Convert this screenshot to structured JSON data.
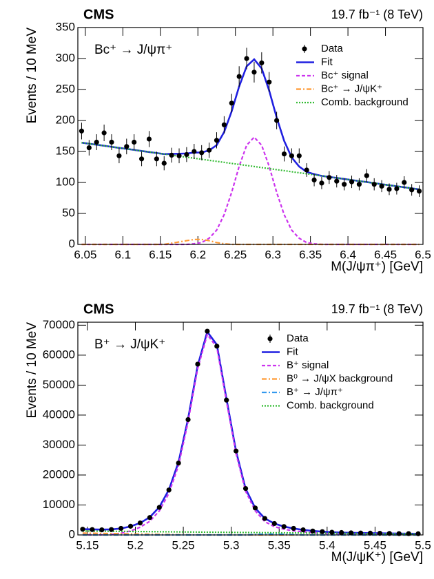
{
  "chart_data": [
    {
      "type": "scatter",
      "experiment": "CMS",
      "lumi": "19.7 fb⁻¹ (8 TeV)",
      "label": "Bc⁺ → J/ψπ⁺",
      "x_label": "M(J/ψπ⁺) [GeV]",
      "y_label": "Events / 10 MeV",
      "xlim": [
        6.04,
        6.5
      ],
      "ylim": [
        0,
        350
      ],
      "xticks": [
        6.05,
        6.1,
        6.15,
        6.2,
        6.25,
        6.3,
        6.35,
        6.4,
        6.45,
        6.5
      ],
      "yticks": [
        0,
        50,
        100,
        150,
        200,
        250,
        300,
        350
      ],
      "legend": "upper right",
      "x": [
        6.045,
        6.055,
        6.065,
        6.075,
        6.085,
        6.095,
        6.105,
        6.115,
        6.125,
        6.135,
        6.145,
        6.155,
        6.165,
        6.175,
        6.185,
        6.195,
        6.205,
        6.215,
        6.225,
        6.235,
        6.245,
        6.255,
        6.265,
        6.275,
        6.285,
        6.295,
        6.305,
        6.315,
        6.325,
        6.335,
        6.345,
        6.355,
        6.365,
        6.375,
        6.385,
        6.395,
        6.405,
        6.415,
        6.425,
        6.435,
        6.445,
        6.455,
        6.465,
        6.475,
        6.485,
        6.495
      ],
      "series": [
        {
          "name": "Data",
          "style": "points",
          "color": "#000000",
          "values": [
            183,
            156,
            165,
            180,
            165,
            143,
            158,
            165,
            138,
            170,
            138,
            131,
            144,
            143,
            145,
            150,
            148,
            152,
            168,
            193,
            228,
            271,
            300,
            278,
            293,
            262,
            200,
            146,
            143,
            143,
            120,
            104,
            99,
            108,
            102,
            97,
            101,
            97,
            111,
            97,
            94,
            89,
            90,
            100,
            88,
            86
          ],
          "errors": [
            13.5,
            12.5,
            12.8,
            13.4,
            12.8,
            12,
            12.6,
            12.8,
            11.7,
            13,
            11.7,
            11.4,
            12,
            12,
            12,
            12.2,
            12.2,
            12.3,
            13,
            13.9,
            15.1,
            16.5,
            17.3,
            16.7,
            17.1,
            16.2,
            14.1,
            12.1,
            12,
            12,
            11,
            10.2,
            9.9,
            10.4,
            10.1,
            9.8,
            10,
            9.8,
            10.5,
            9.8,
            9.7,
            9.4,
            9.5,
            10,
            9.4,
            9.3
          ]
        },
        {
          "name": "Fit",
          "style": "solid",
          "color": "#1f1fe0",
          "values": [
            164.2,
            162.5,
            160.9,
            159.2,
            157.5,
            155.8,
            154.2,
            152.5,
            150.8,
            149.1,
            147.5,
            145.8,
            146.1,
            146.4,
            146.8,
            148.1,
            148.4,
            151.7,
            160.1,
            181.4,
            214.7,
            255,
            287.4,
            298.7,
            284,
            248.3,
            204.7,
            167,
            140.3,
            125.6,
            117,
            113.3,
            110.6,
            108.9,
            107.3,
            105.6,
            103.9,
            102.2,
            100.6,
            98.9,
            97.2,
            95.5,
            93.9,
            92.2,
            90.5,
            88.8
          ]
        },
        {
          "name": "Bc⁺ signal",
          "style": "dashed",
          "color": "#cc33ee",
          "values": [
            0,
            0,
            0,
            0,
            0,
            0,
            0,
            0,
            0,
            0,
            0,
            0,
            0,
            0,
            0,
            1,
            3,
            10,
            23,
            48,
            84,
            126,
            160,
            173,
            160,
            126,
            84,
            48,
            23,
            10,
            3,
            1,
            0,
            0,
            0,
            0,
            0,
            0,
            0,
            0,
            0,
            0,
            0,
            0,
            0,
            0
          ]
        },
        {
          "name": "Bc⁺ → J/ψK⁺",
          "style": "dashdot",
          "color": "#ff9933",
          "values": [
            0,
            0,
            0,
            0,
            0,
            0,
            0,
            0,
            0,
            0,
            0,
            0,
            2,
            4,
            6,
            8,
            8,
            6,
            3,
            1,
            0,
            0,
            0,
            0,
            0,
            0,
            0,
            0,
            0,
            0,
            0,
            0,
            0,
            0,
            0,
            0,
            0,
            0,
            0,
            0,
            0,
            0,
            0,
            0,
            0,
            0
          ]
        },
        {
          "name": "Comb. background",
          "style": "dotted",
          "color": "#33bb33",
          "values": [
            164.2,
            162.5,
            160.9,
            159.2,
            157.5,
            155.8,
            154.2,
            152.5,
            150.8,
            149.1,
            147.5,
            145.8,
            144.1,
            142.4,
            140.8,
            139.1,
            137.4,
            135.7,
            134.1,
            132.4,
            130.7,
            129,
            127.4,
            125.7,
            124,
            122.3,
            120.7,
            119,
            117.3,
            115.6,
            114,
            112.3,
            110.6,
            108.9,
            107.3,
            105.6,
            103.9,
            102.2,
            100.6,
            98.9,
            97.2,
            95.5,
            93.9,
            92.2,
            90.5,
            88.8
          ]
        }
      ]
    },
    {
      "type": "scatter",
      "experiment": "CMS",
      "lumi": "19.7 fb⁻¹ (8 TeV)",
      "label": "B⁺ → J/ψK⁺",
      "x_label": "M(J/ψK⁺) [GeV]",
      "y_label": "Events / 10 MeV",
      "xlim": [
        5.14,
        5.5
      ],
      "ylim": [
        0,
        71000
      ],
      "xticks": [
        5.15,
        5.2,
        5.25,
        5.3,
        5.35,
        5.4,
        5.45,
        5.5
      ],
      "yticks": [
        0,
        10000,
        20000,
        30000,
        40000,
        50000,
        60000,
        70000
      ],
      "legend": "upper right",
      "x": [
        5.145,
        5.155,
        5.165,
        5.175,
        5.185,
        5.195,
        5.205,
        5.215,
        5.225,
        5.235,
        5.245,
        5.255,
        5.265,
        5.275,
        5.285,
        5.295,
        5.305,
        5.315,
        5.325,
        5.335,
        5.345,
        5.355,
        5.365,
        5.375,
        5.385,
        5.395,
        5.405,
        5.415,
        5.425,
        5.435,
        5.445,
        5.455,
        5.465,
        5.475,
        5.485,
        5.495
      ],
      "series": [
        {
          "name": "Data",
          "style": "points",
          "color": "#000000",
          "values": [
            1900,
            1800,
            1700,
            1800,
            2200,
            2900,
            4000,
            5800,
            9200,
            15000,
            24000,
            38500,
            57000,
            68000,
            63000,
            45000,
            28000,
            15500,
            9000,
            5500,
            3800,
            2800,
            2200,
            1700,
            1300,
            1100,
            900,
            800,
            700,
            650,
            600,
            550,
            500,
            450,
            450,
            400
          ],
          "errors": [
            44,
            42,
            41,
            42,
            47,
            54,
            63,
            76,
            96,
            122,
            155,
            196,
            239,
            261,
            251,
            212,
            167,
            124,
            95,
            74,
            62,
            53,
            47,
            41,
            36,
            33,
            30,
            28,
            26,
            25,
            24,
            23,
            22,
            21,
            21,
            20
          ]
        },
        {
          "name": "Fit",
          "style": "solid",
          "color": "#1f1fe0",
          "values": [
            1950,
            1850,
            1800,
            1850,
            2150,
            2850,
            4000,
            5900,
            9300,
            15100,
            24300,
            38800,
            56500,
            67800,
            63500,
            45500,
            28000,
            15400,
            9000,
            5500,
            3800,
            2800,
            2150,
            1700,
            1350,
            1100,
            920,
            800,
            710,
            650,
            600,
            550,
            500,
            460,
            430,
            400
          ]
        },
        {
          "name": "B⁺ signal",
          "style": "dashed",
          "color": "#cc33ee",
          "values": [
            50,
            30,
            60,
            190,
            560,
            1340,
            2570,
            4550,
            8030,
            13910,
            23190,
            37760,
            55520,
            66870,
            62600,
            44630,
            27160,
            14590,
            8060,
            4440,
            2770,
            1900,
            1380,
            1060,
            740,
            510,
            360,
            270,
            210,
            180,
            160,
            140,
            110,
            100,
            100,
            100
          ]
        },
        {
          "name": "B⁰ → J/ψX background",
          "style": "dashdot",
          "color": "#ff9933",
          "values": [
            600,
            550,
            500,
            450,
            400,
            350,
            300,
            250,
            200,
            150,
            100,
            50,
            20,
            5,
            0,
            0,
            0,
            0,
            0,
            0,
            0,
            0,
            0,
            0,
            0,
            0,
            0,
            0,
            0,
            0,
            0,
            0,
            0,
            0,
            0,
            0
          ]
        },
        {
          "name": "B⁺ → J/ψπ⁺",
          "style": "dashdot",
          "color": "#3399ee",
          "values": [
            0,
            0,
            0,
            0,
            0,
            0,
            0,
            0,
            0,
            0,
            0,
            0,
            0,
            0,
            0,
            0,
            0,
            0,
            150,
            300,
            300,
            200,
            100,
            0,
            0,
            0,
            0,
            0,
            0,
            0,
            0,
            0,
            0,
            0,
            0,
            0
          ]
        },
        {
          "name": "Comb. background",
          "style": "dotted",
          "color": "#33bb33",
          "values": [
            1300,
            1271,
            1243,
            1214,
            1186,
            1157,
            1129,
            1100,
            1071,
            1043,
            1014,
            986,
            957,
            929,
            900,
            871,
            843,
            814,
            786,
            757,
            729,
            700,
            671,
            643,
            614,
            586,
            557,
            529,
            500,
            471,
            443,
            414,
            386,
            357,
            329,
            300
          ]
        }
      ]
    }
  ]
}
